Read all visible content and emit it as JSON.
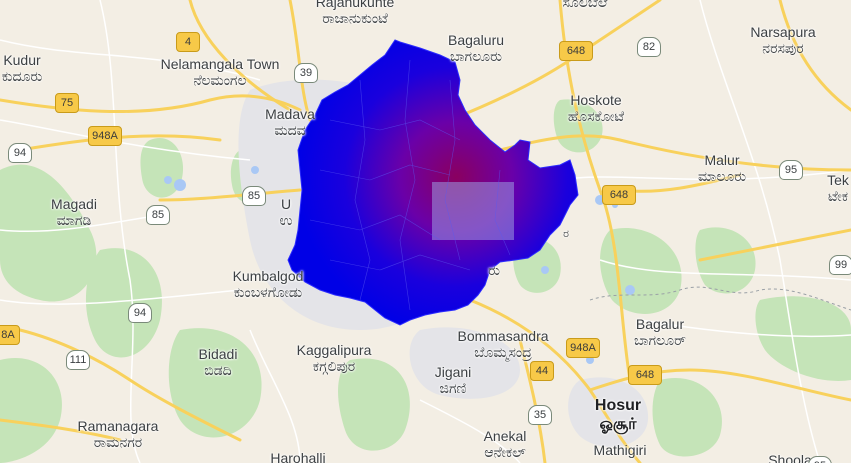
{
  "map": {
    "colors": {
      "land": "#f3eee4",
      "green": "#bfe3b3",
      "road_major": "#fdd868",
      "road_minor": "#ffffff",
      "urban": "#e6e6ea",
      "region_blue": "#0000e6",
      "region_purple": "#6a00a8",
      "region_hot": "#8a005a",
      "overlay_light": "#8c8cd9"
    },
    "places": [
      {
        "en": "Rajanukunte",
        "kn": "ರಾಜಾನುಕುಂಟೆ"
      },
      {
        "en": "",
        "kn": "ಸೂಲಿಬೆಲೆ"
      },
      {
        "en": "",
        "kn": ""
      },
      {
        "en": "Narsapura",
        "kn": "ನರಸಪುರ"
      },
      {
        "en": "Kudur",
        "kn": "ಕುದೂರು"
      },
      {
        "en": "Nelamangala Town",
        "kn": "ನೆಲಮಂಗಲ"
      },
      {
        "en": "Bagaluru",
        "kn": "ಬಾಗಲೂರು"
      },
      {
        "en": "Madava",
        "kn": "ಮದವ"
      },
      {
        "en": "Hoskote",
        "kn": "ಹೊಸಕೋಟೆ"
      },
      {
        "en": "Magadi",
        "kn": "ಮಾಗಡಿ"
      },
      {
        "en": "Malur",
        "kn": "ಮಾಲೂರು"
      },
      {
        "en": "Tek",
        "kn": "ಟೇಕ"
      },
      {
        "en": "U",
        "kn": "ಉ"
      },
      {
        "en": "Kumbalgod",
        "kn": "ಕುಂಬಳಗೋಡು"
      },
      {
        "en": "Bidadi",
        "kn": "ಬಿಡದಿ"
      },
      {
        "en": "Kaggalipura",
        "kn": "ಕಗ್ಗಲಿಪುರ"
      },
      {
        "en": "Bommasandra",
        "kn": "ಬೊಮ್ಮಸಂದ್ರ"
      },
      {
        "en": "Bagalur",
        "kn": "ಬಾಗಲೂರ್"
      },
      {
        "en": "Jigani",
        "kn": "ಜಿಗಣಿ"
      },
      {
        "en": "Hosur",
        "kn": "ஓசூர்"
      },
      {
        "en": "Ramanagara",
        "kn": "ರಾಮನಗರ"
      },
      {
        "en": "Anekal",
        "kn": "ಆನೇಕಲ್"
      },
      {
        "en": "Mathigiri",
        "kn": ""
      },
      {
        "en": "Harohalli",
        "kn": ""
      },
      {
        "en": "Shoola",
        "kn": ""
      },
      {
        "en": "",
        "kn": "ರು"
      },
      {
        "en": "",
        "kn": "ರ"
      }
    ],
    "shields": [
      "4",
      "39",
      "82",
      "648",
      "75",
      "948A",
      "94",
      "85",
      "648",
      "95",
      "99",
      "94",
      "8A",
      "111",
      "948A",
      "44",
      "648",
      "35",
      "95"
    ]
  }
}
